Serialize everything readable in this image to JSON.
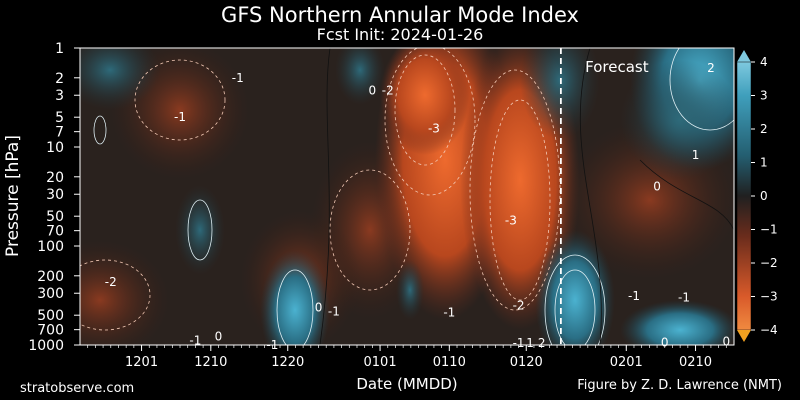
{
  "chart_data": {
    "type": "heatmap",
    "title": "GFS Northern Annular Mode Index",
    "subtitle": "Fcst Init: 2024-01-26",
    "xlabel": "Date (MMDD)",
    "ylabel": "Pressure [hPa]",
    "x_ticks": [
      "1201",
      "1210",
      "1220",
      "0101",
      "0110",
      "0120",
      "0201",
      "0210"
    ],
    "x_tick_days": [
      8,
      17,
      27,
      39,
      48,
      58,
      71,
      80
    ],
    "x_range_days": [
      0,
      85
    ],
    "y_ticks": [
      1,
      2,
      3,
      5,
      7,
      10,
      20,
      30,
      50,
      70,
      100,
      200,
      300,
      500,
      700,
      1000
    ],
    "y_scale": "log",
    "y_range": [
      1,
      1000
    ],
    "forecast_label": "Forecast",
    "forecast_start_day": 62.5,
    "colorbar": {
      "ticks": [
        4,
        3,
        2,
        1,
        0,
        -1,
        -2,
        -3,
        -4
      ],
      "range": [
        -4,
        4
      ],
      "colors": {
        "positive": "#2f9ab2",
        "neutral": "#202020",
        "negative": "#e8531e",
        "high_tip": "#7ec9df",
        "low_tip": "#f0a020"
      }
    },
    "contour_labels": [
      {
        "text": "-1",
        "day": 20.5,
        "p": 2
      },
      {
        "text": "-1",
        "day": 13,
        "p": 5
      },
      {
        "text": "0",
        "day": 38,
        "p": 2.7
      },
      {
        "text": "-2",
        "day": 40,
        "p": 2.7
      },
      {
        "text": "-3",
        "day": 46,
        "p": 6.5
      },
      {
        "text": "-2",
        "day": 4,
        "p": 230
      },
      {
        "text": "0",
        "day": 31,
        "p": 420
      },
      {
        "text": "-1",
        "day": 33,
        "p": 460
      },
      {
        "text": "0",
        "day": 18,
        "p": 820
      },
      {
        "text": "-1",
        "day": 15,
        "p": 900
      },
      {
        "text": "-1",
        "day": 25,
        "p": 1000
      },
      {
        "text": "-1",
        "day": 48,
        "p": 470
      },
      {
        "text": "-3",
        "day": 56,
        "p": 55
      },
      {
        "text": "-2",
        "day": 57,
        "p": 400
      },
      {
        "text": "-1",
        "day": 57,
        "p": 950
      },
      {
        "text": "1",
        "day": 58.5,
        "p": 950
      },
      {
        "text": "2",
        "day": 60,
        "p": 950
      },
      {
        "text": "2",
        "day": 82,
        "p": 1.6
      },
      {
        "text": "1",
        "day": 80,
        "p": 12
      },
      {
        "text": "0",
        "day": 75,
        "p": 25
      },
      {
        "text": "-1",
        "day": 72,
        "p": 320
      },
      {
        "text": "-1",
        "day": 78.5,
        "p": 330
      },
      {
        "text": "0",
        "day": 76,
        "p": 940
      },
      {
        "text": "0",
        "day": 84,
        "p": 920
      }
    ]
  },
  "footer": {
    "left": "stratobserve.com",
    "right": "Figure by Z. D. Lawrence (NMT)"
  }
}
